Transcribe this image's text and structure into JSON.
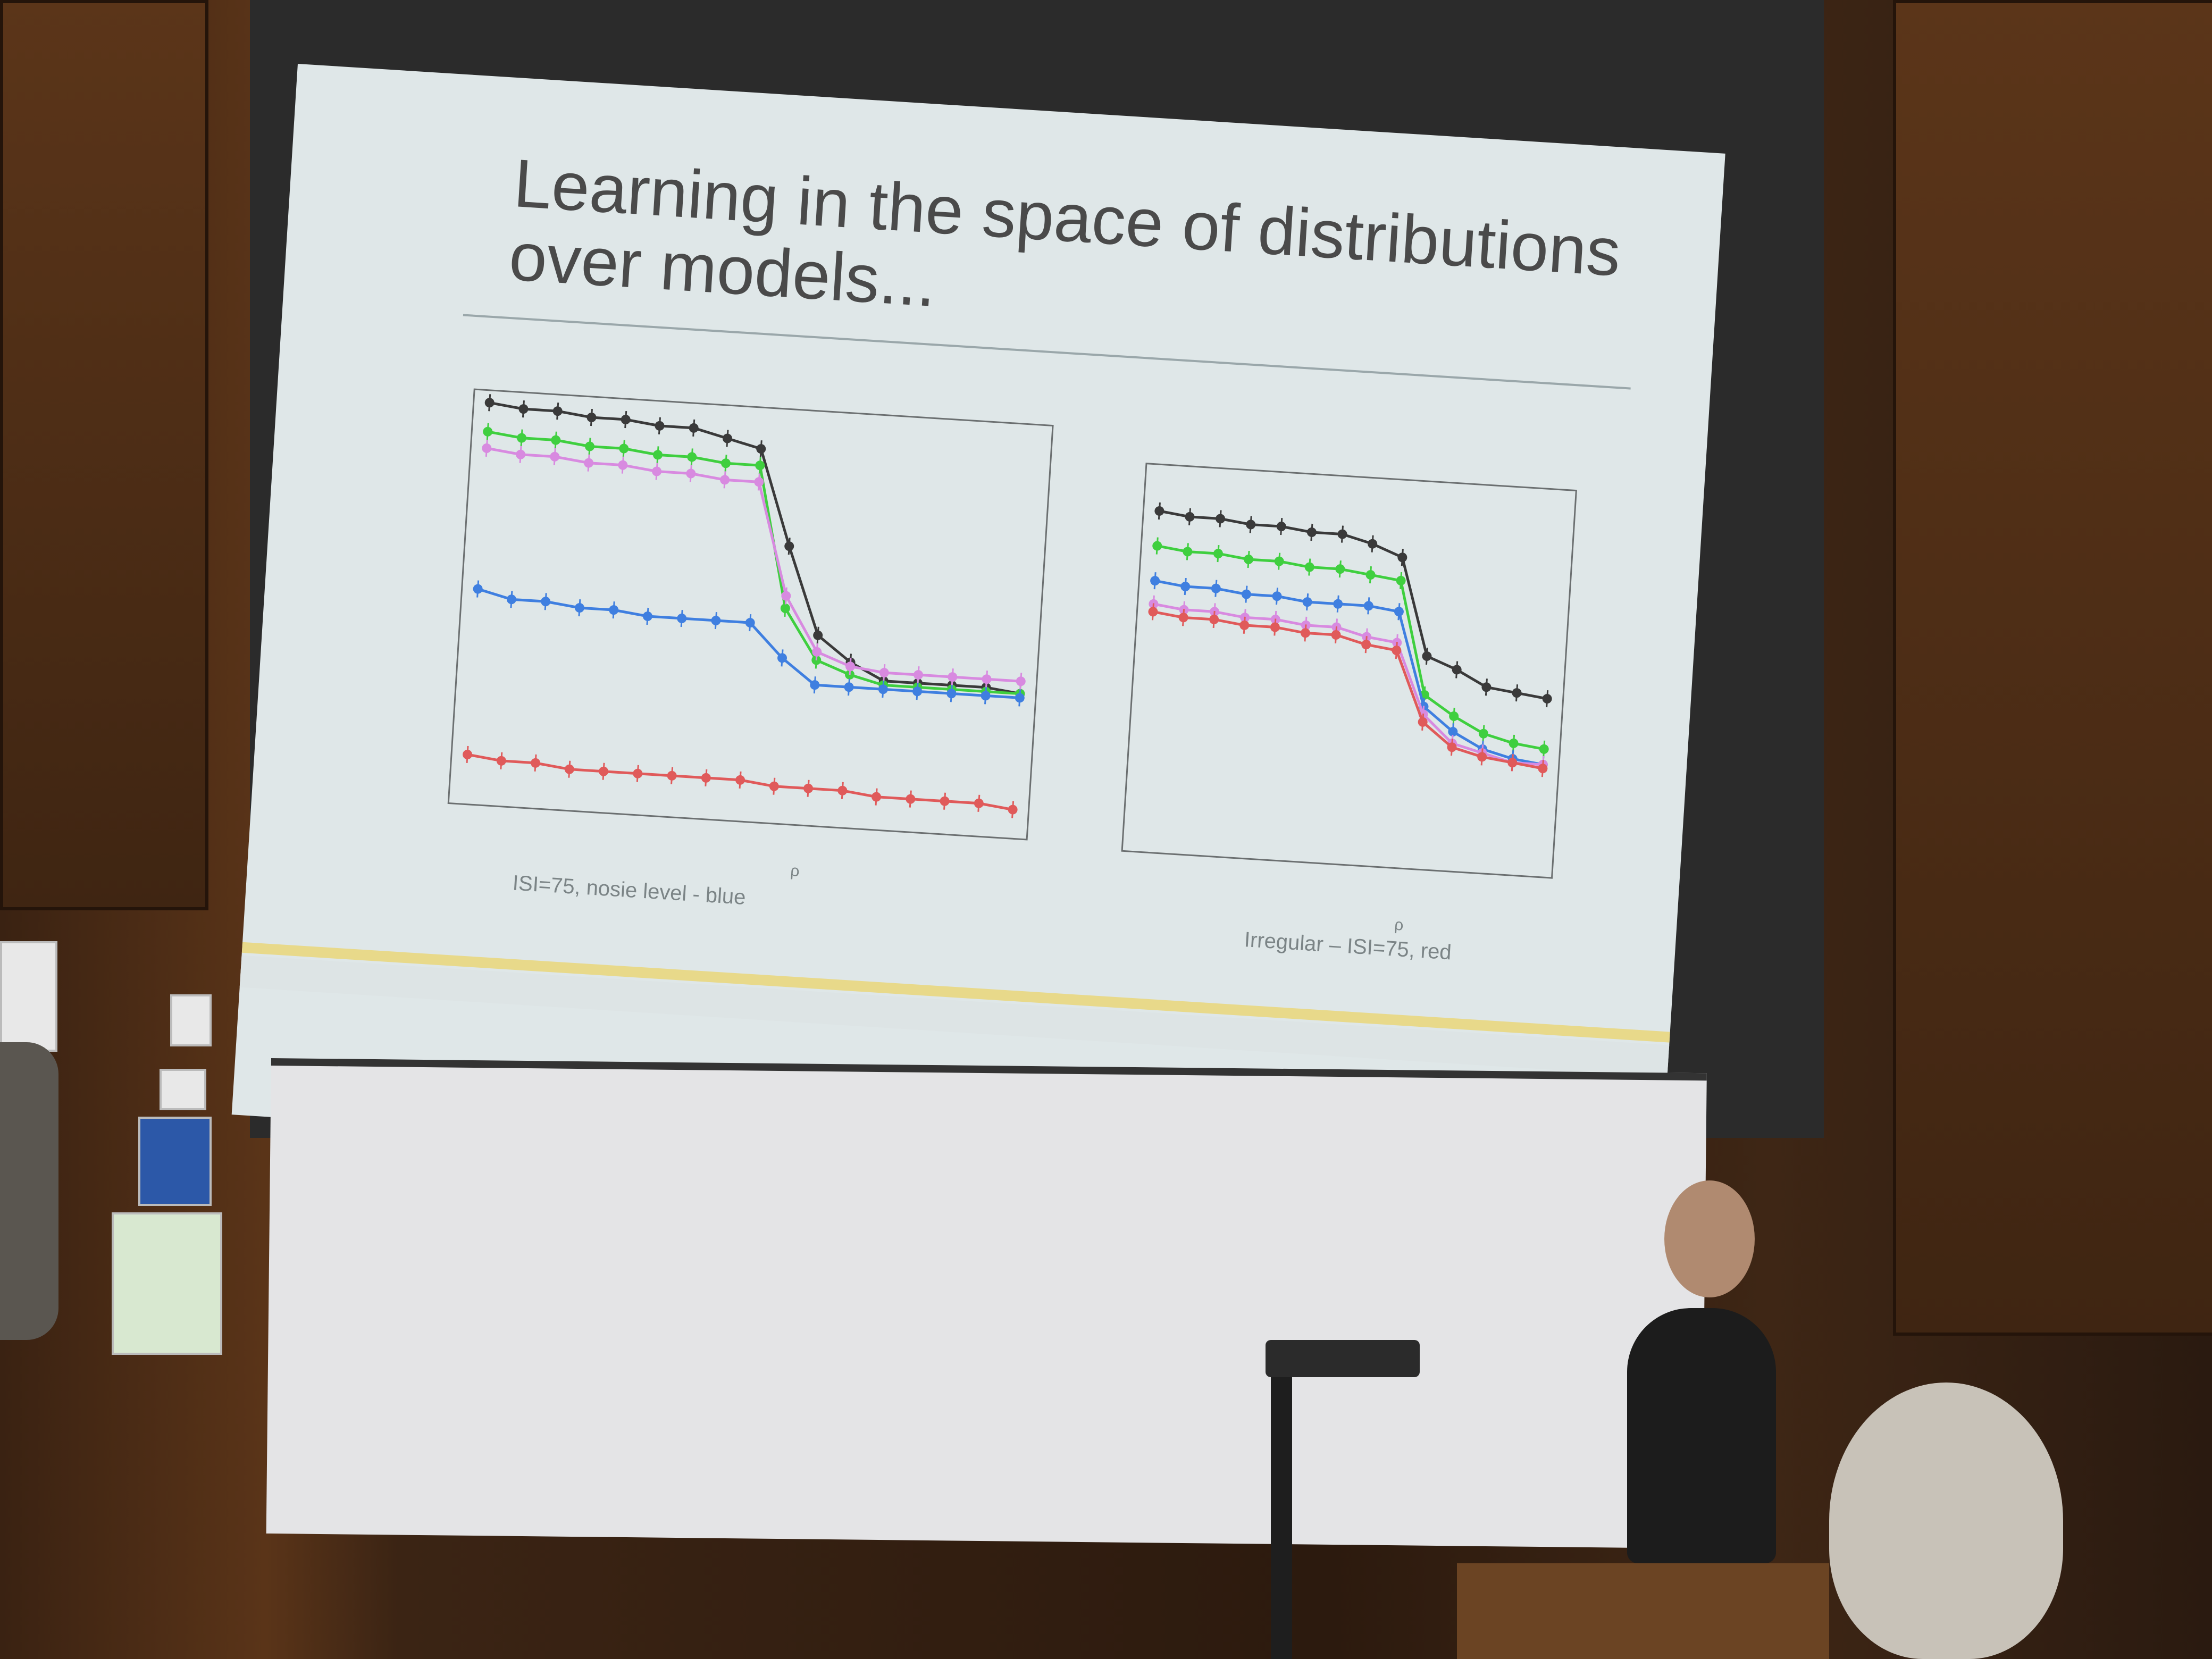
{
  "slide": {
    "title_line1": "Learning in the space of distributions",
    "title_line2": "over models...",
    "caption_left": "ISI=75, nosie level - blue",
    "caption_right": "Irregular – ISI=75, red",
    "axis_symbol": "ρ"
  },
  "colors": {
    "black": "#3a3a3a",
    "green": "#3fcf3f",
    "violet": "#d88ae0",
    "blue": "#3f7fe0",
    "red": "#e05a5a"
  },
  "chart_data": [
    {
      "type": "line",
      "x": [
        1,
        2,
        3,
        4,
        5,
        6,
        7,
        8,
        9,
        10,
        11,
        12,
        13,
        14,
        15,
        16,
        17
      ],
      "series": [
        {
          "color": "black",
          "values": [
            0.97,
            0.96,
            0.96,
            0.95,
            0.95,
            0.94,
            0.94,
            0.92,
            0.9,
            0.67,
            0.46,
            0.4,
            0.36,
            0.36,
            0.36,
            0.36,
            0.35
          ]
        },
        {
          "color": "green",
          "values": [
            0.9,
            0.89,
            0.89,
            0.88,
            0.88,
            0.87,
            0.87,
            0.86,
            0.86,
            0.52,
            0.4,
            0.37,
            0.35,
            0.35,
            0.35,
            0.35,
            0.35
          ]
        },
        {
          "color": "violet",
          "values": [
            0.86,
            0.85,
            0.85,
            0.84,
            0.84,
            0.83,
            0.83,
            0.82,
            0.82,
            0.55,
            0.42,
            0.39,
            0.38,
            0.38,
            0.38,
            0.38,
            0.38
          ]
        },
        {
          "color": "blue",
          "values": [
            0.52,
            0.5,
            0.5,
            0.49,
            0.49,
            0.48,
            0.48,
            0.48,
            0.48,
            0.4,
            0.34,
            0.34,
            0.34,
            0.34,
            0.34,
            0.34,
            0.34
          ]
        },
        {
          "color": "red",
          "values": [
            0.12,
            0.11,
            0.11,
            0.1,
            0.1,
            0.1,
            0.1,
            0.1,
            0.1,
            0.09,
            0.09,
            0.09,
            0.08,
            0.08,
            0.08,
            0.08,
            0.07
          ]
        }
      ]
    },
    {
      "type": "line",
      "x": [
        1,
        2,
        3,
        4,
        5,
        6,
        7,
        8,
        9,
        10,
        11,
        12,
        13,
        14
      ],
      "series": [
        {
          "color": "black",
          "values": [
            0.88,
            0.87,
            0.87,
            0.86,
            0.86,
            0.85,
            0.85,
            0.83,
            0.8,
            0.55,
            0.52,
            0.48,
            0.47,
            0.46
          ]
        },
        {
          "color": "green",
          "values": [
            0.79,
            0.78,
            0.78,
            0.77,
            0.77,
            0.76,
            0.76,
            0.75,
            0.74,
            0.45,
            0.4,
            0.36,
            0.34,
            0.33
          ]
        },
        {
          "color": "blue",
          "values": [
            0.7,
            0.69,
            0.69,
            0.68,
            0.68,
            0.67,
            0.67,
            0.67,
            0.66,
            0.42,
            0.36,
            0.32,
            0.3,
            0.29
          ]
        },
        {
          "color": "violet",
          "values": [
            0.64,
            0.63,
            0.63,
            0.62,
            0.62,
            0.61,
            0.61,
            0.59,
            0.58,
            0.4,
            0.33,
            0.31,
            0.29,
            0.29
          ]
        },
        {
          "color": "red",
          "values": [
            0.62,
            0.61,
            0.61,
            0.6,
            0.6,
            0.59,
            0.59,
            0.57,
            0.56,
            0.38,
            0.32,
            0.3,
            0.29,
            0.28
          ]
        }
      ]
    }
  ]
}
